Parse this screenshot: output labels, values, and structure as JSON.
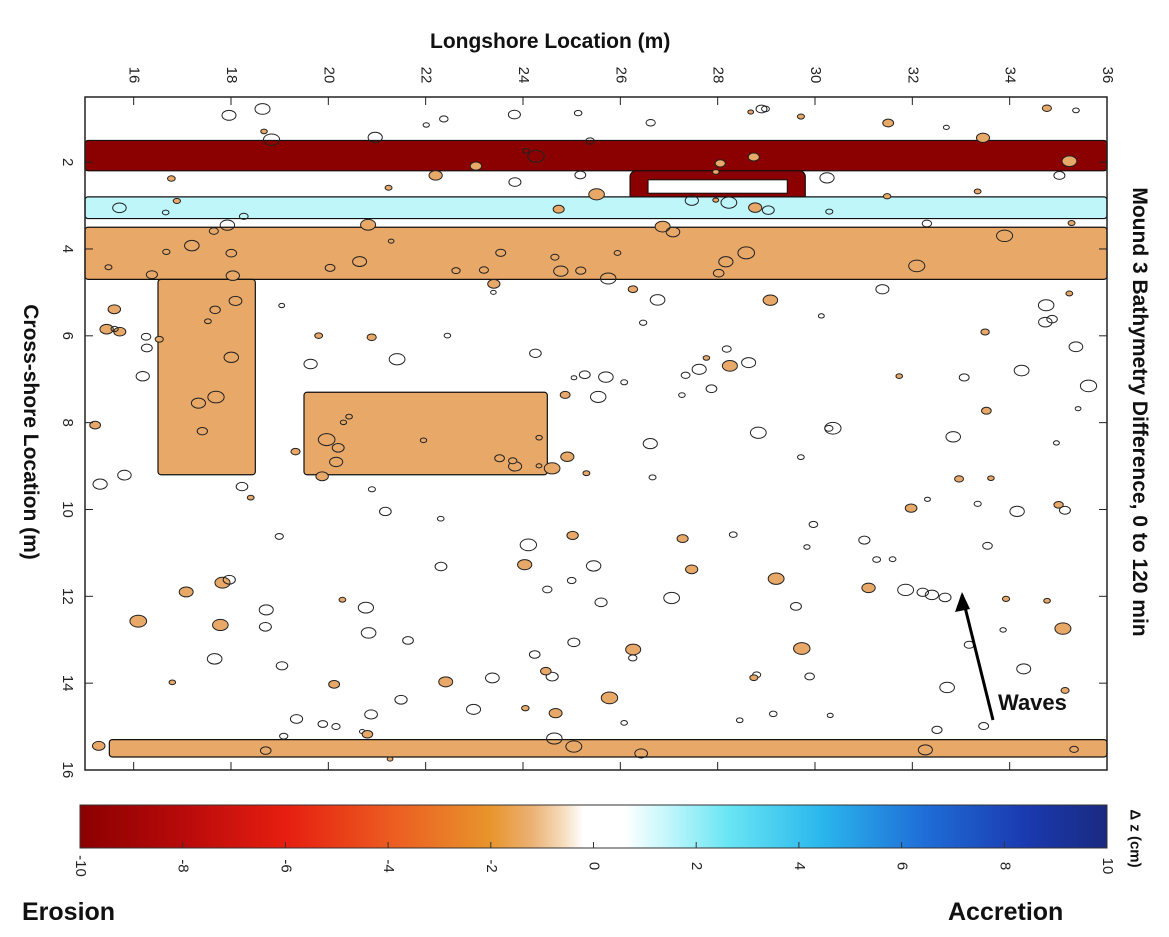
{
  "chart_data": {
    "type": "heatmap",
    "title": "Mound 3 Bathymetry Difference, 0 to 120 min",
    "xlabel": "Longshore Location (m)",
    "ylabel": "Cross-shore Location (m)",
    "xlim": [
      15,
      36
    ],
    "ylim": [
      0.5,
      16
    ],
    "x_ticks": [
      "16",
      "18",
      "20",
      "22",
      "24",
      "26",
      "28",
      "30",
      "32",
      "34",
      "36"
    ],
    "y_ticks": [
      "2",
      "4",
      "6",
      "8",
      "10",
      "12",
      "14",
      "16"
    ],
    "colorbar": {
      "label": "Δ z (cm)",
      "range": [
        -10,
        10
      ],
      "ticks": [
        "-10",
        "-8",
        "-6",
        "-4",
        "-2",
        "0",
        "2",
        "4",
        "6",
        "8",
        "10"
      ],
      "colors": {
        "neg_max": "#8b0000",
        "neg_mid": "#e8541c",
        "neg_low": "#e8a868",
        "zero": "#ffffff",
        "pos_low": "#bff6fa",
        "pos_mid": "#2f9be0",
        "pos_max": "#1a2a80"
      }
    },
    "regions": [
      {
        "kind": "erosion",
        "dz": -8,
        "x": [
          15,
          36
        ],
        "y": [
          1.5,
          2.2
        ]
      },
      {
        "kind": "erosion",
        "dz": -9,
        "x": [
          26.2,
          29.8
        ],
        "y": [
          2.2,
          2.9
        ]
      },
      {
        "kind": "accretion",
        "dz": 1.5,
        "x": [
          15,
          36
        ],
        "y": [
          2.8,
          3.3
        ]
      },
      {
        "kind": "erosion",
        "dz": -2,
        "x": [
          15,
          36
        ],
        "y": [
          3.5,
          4.7
        ]
      },
      {
        "kind": "erosion",
        "dz": -2,
        "x": [
          16.5,
          18.5
        ],
        "y": [
          4.7,
          9.2
        ]
      },
      {
        "kind": "erosion",
        "dz": -2,
        "x": [
          19.5,
          24.5
        ],
        "y": [
          7.3,
          9.2
        ]
      },
      {
        "kind": "erosion",
        "dz": -2,
        "x": [
          15.5,
          36
        ],
        "y": [
          15.3,
          15.7
        ]
      }
    ],
    "annotations": {
      "waves": "Waves",
      "erosion": "Erosion",
      "accretion": "Accretion"
    }
  }
}
